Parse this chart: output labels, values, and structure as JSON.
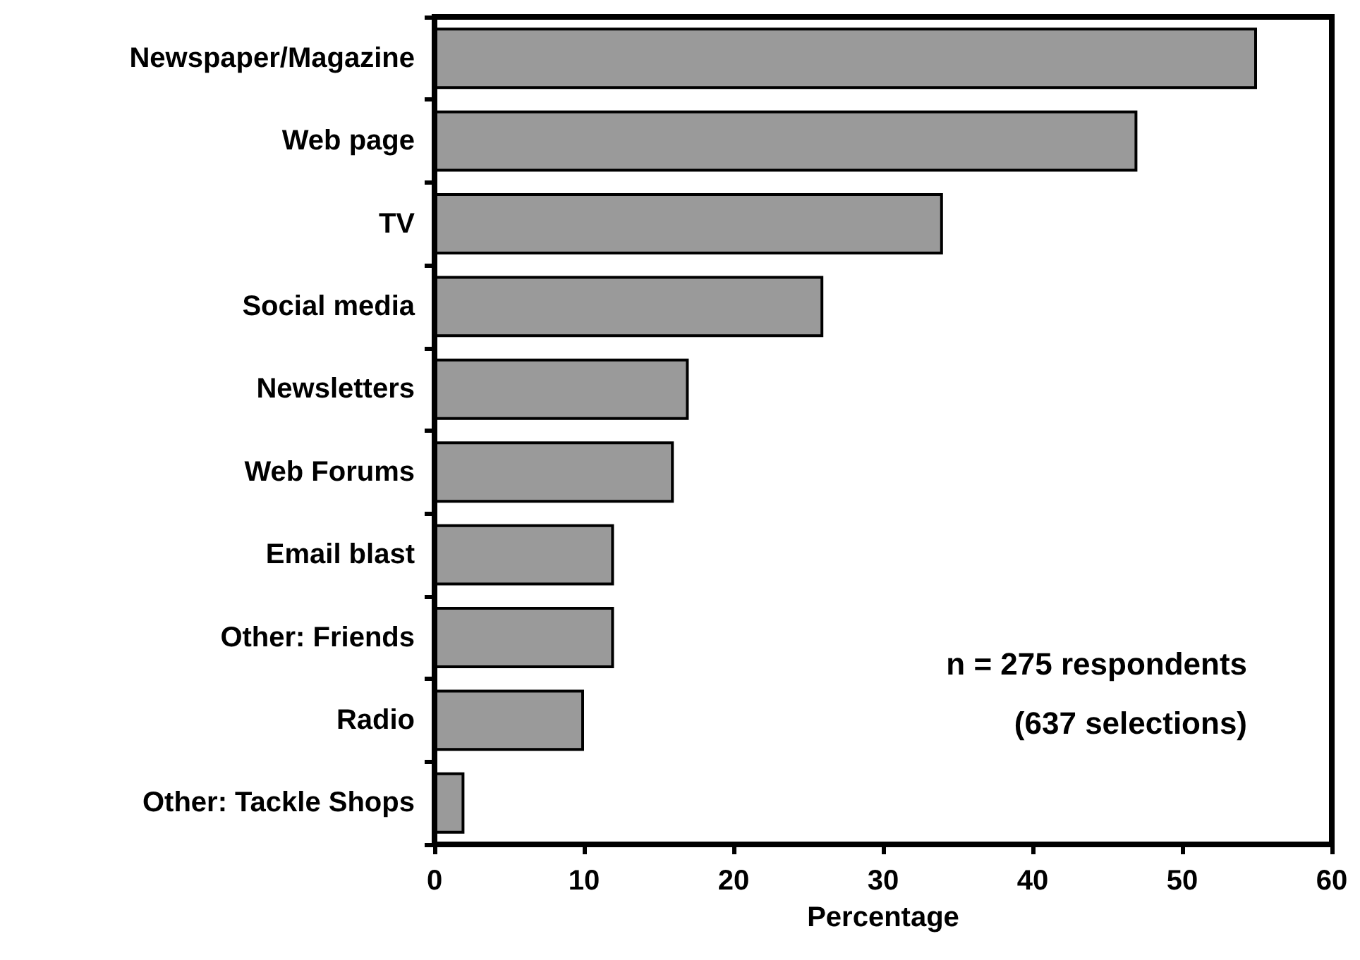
{
  "chart_data": {
    "type": "bar",
    "orientation": "horizontal",
    "xlabel": "Percentage",
    "categories": [
      "Newspaper/Magazine",
      "Web page",
      "TV",
      "Social media",
      "Newsletters",
      "Web Forums",
      "Email blast",
      "Other: Friends",
      "Radio",
      "Other: Tackle Shops"
    ],
    "values": [
      55,
      47,
      34,
      26,
      17,
      16,
      12,
      12,
      10,
      2
    ],
    "color": "#9a9a9a",
    "xlim": [
      0,
      60
    ],
    "xticks": [
      0,
      10,
      20,
      30,
      40,
      50,
      60
    ],
    "grid": false,
    "annotations": [
      "n = 275 respondents",
      "(637 selections)"
    ]
  }
}
